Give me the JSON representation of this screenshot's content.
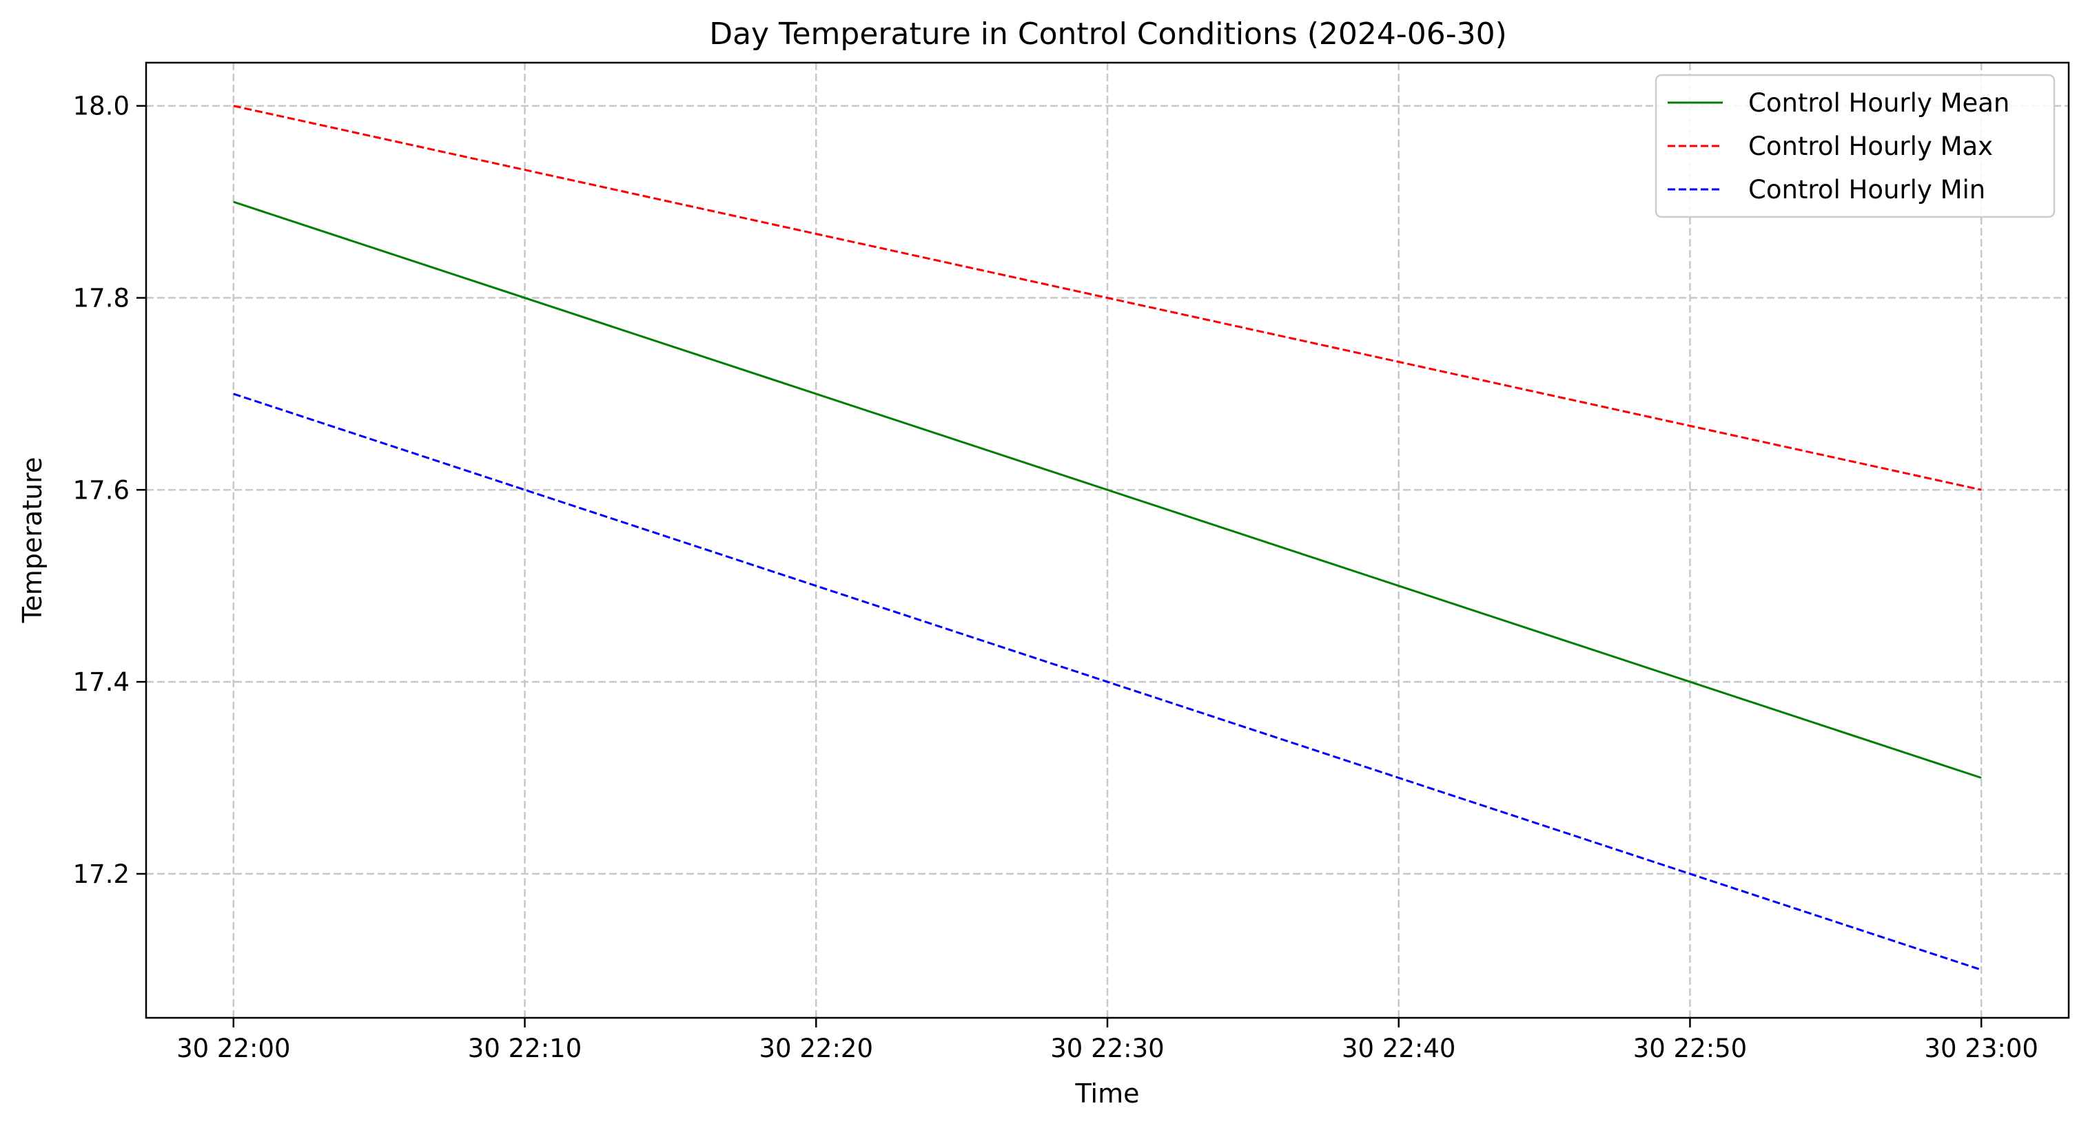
{
  "chart_data": {
    "type": "line",
    "title": "Day Temperature in Control Conditions (2024-06-30)",
    "xlabel": "Time",
    "ylabel": "Temperature",
    "x": [
      "30 22:00",
      "30 23:00"
    ],
    "x_ticks": [
      "30 22:00",
      "30 22:10",
      "30 22:20",
      "30 22:30",
      "30 22:40",
      "30 22:50",
      "30 23:00"
    ],
    "x_tick_minutes": [
      0,
      10,
      20,
      30,
      40,
      50,
      60
    ],
    "x_minutes": [
      0,
      60
    ],
    "xlim_minutes": [
      -3,
      63
    ],
    "y_ticks": [
      "17.2",
      "17.4",
      "17.6",
      "17.8",
      "18.0"
    ],
    "ylim": [
      17.05,
      18.045
    ],
    "grid": true,
    "legend_position": "top-right",
    "series": [
      {
        "name": "Control Hourly Mean",
        "values": [
          17.9,
          17.3
        ],
        "color": "#008000",
        "style": "solid"
      },
      {
        "name": "Control Hourly Max",
        "values": [
          18.0,
          17.6
        ],
        "color": "#ff0000",
        "style": "dashed"
      },
      {
        "name": "Control Hourly Min",
        "values": [
          17.7,
          17.1
        ],
        "color": "#0000ff",
        "style": "dashed"
      }
    ]
  }
}
